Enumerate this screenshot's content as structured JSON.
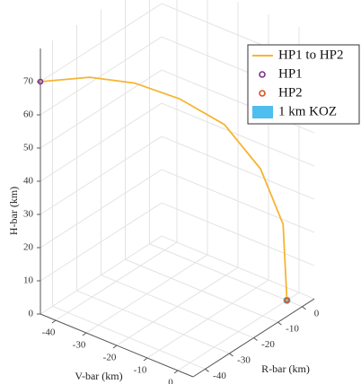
{
  "chart_data": {
    "type": "line3d",
    "xlabel": "V-bar (km)",
    "ylabel": "R-bar (km)",
    "zlabel": "H-bar (km)",
    "vlim": [
      -45,
      5
    ],
    "rlim": [
      -45,
      5
    ],
    "hlim": [
      0,
      80
    ],
    "vticks": [
      -40,
      -30,
      -20,
      -10,
      0
    ],
    "rticks": [
      -40,
      -30,
      -20,
      -10,
      0
    ],
    "hticks": [
      0,
      10,
      20,
      30,
      40,
      50,
      60,
      70
    ],
    "grid": true,
    "legend": "upper right",
    "series": [
      {
        "name": "HP1 to HP2",
        "color": "#f5b531",
        "v": [
          -45,
          -36,
          -27.8,
          -19.6,
          -11.4,
          -4.8,
          -0.7,
          0
        ],
        "r": [
          -45,
          -36,
          -27.8,
          -19.6,
          -11.4,
          -4.8,
          -0.7,
          0
        ],
        "h": [
          70,
          70.5,
          68,
          62.5,
          54,
          40,
          23,
          0
        ]
      }
    ],
    "points": [
      {
        "name": "HP1",
        "color": "#7e2f8e",
        "v": -45,
        "r": -45,
        "h": 70
      },
      {
        "name": "HP2",
        "color": "#d95319",
        "v": 0,
        "r": 0,
        "h": 0
      }
    ],
    "koz": {
      "name": "1 km KOZ",
      "color": "#4dbeee"
    }
  }
}
